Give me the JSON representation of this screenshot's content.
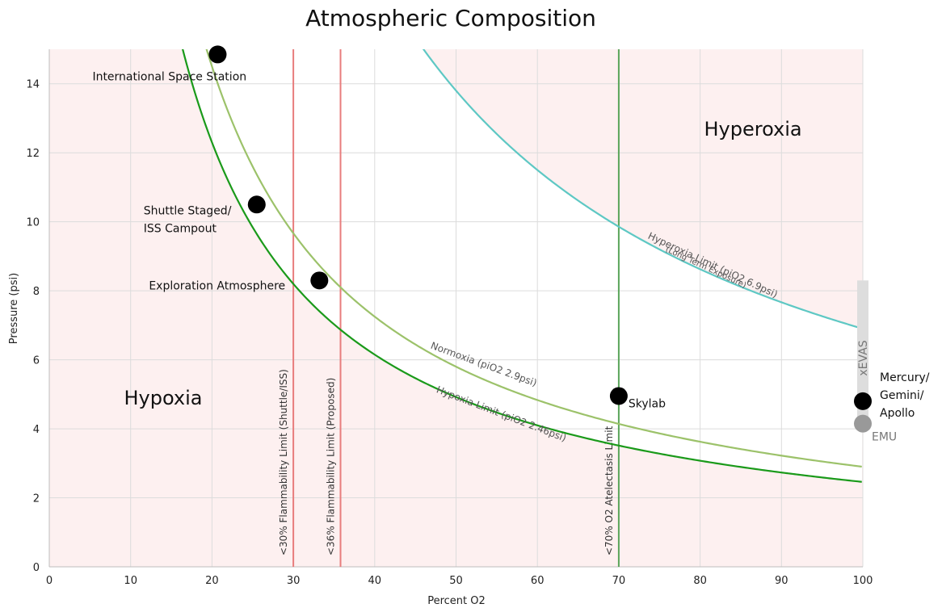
{
  "chart_data": {
    "type": "scatter",
    "title": "Atmospheric Composition",
    "xlabel": "Percent O2",
    "ylabel": "Pressure (psi)",
    "xlim": [
      0,
      100
    ],
    "ylim": [
      0,
      15
    ],
    "x_ticks": [
      0,
      10,
      20,
      30,
      40,
      50,
      60,
      70,
      80,
      90,
      100
    ],
    "y_ticks": [
      0,
      2,
      4,
      6,
      8,
      10,
      12,
      14
    ],
    "grid": true,
    "zones": [
      {
        "label": "Hypoxia",
        "x": 14,
        "y": 4.7
      },
      {
        "label": "Hyperoxia",
        "x": 86.5,
        "y": 12.5
      }
    ],
    "curves": [
      {
        "label": "Hypoxia Limit (piO2 2.46psi)",
        "sublabel": "",
        "pio2": 2.46,
        "color": "#1a9a1a"
      },
      {
        "label": "Normoxia (piO2 2.9psi)",
        "sublabel": "",
        "pio2": 2.9,
        "color": "#9cc26a"
      },
      {
        "label": "Hyperoxia Limit (piO2 6.9psi)",
        "sublabel": "(Long Term Exposure)",
        "pio2": 6.9,
        "color": "#5ec8c4"
      }
    ],
    "vertical_lines": [
      {
        "x": 30,
        "label": "<30% Flammability Limit (Shuttle/ISS)",
        "color": "#e87d7d"
      },
      {
        "x": 35.8,
        "label": "<36% Flammability Limit (Proposed)",
        "color": "#e87d7d"
      },
      {
        "x": 70,
        "label": "<70% O2 Atelectasis Limit",
        "color": "#5aa55a"
      }
    ],
    "points": [
      {
        "label": "International Space Station",
        "x": 20.7,
        "y": 14.85,
        "color": "#000000"
      },
      {
        "label": "Shuttle Staged/",
        "label2": "ISS Campout",
        "x": 25.5,
        "y": 10.5,
        "color": "#000000"
      },
      {
        "label": "Exploration Atmosphere",
        "x": 33.2,
        "y": 8.3,
        "color": "#000000"
      },
      {
        "label": "Skylab",
        "x": 70,
        "y": 4.95,
        "color": "#000000"
      },
      {
        "label": "Mercury/",
        "label2": "Gemini/",
        "label3": "Apollo",
        "x": 100,
        "y": 4.8,
        "color": "#000000"
      },
      {
        "label": "EMU",
        "x": 100,
        "y": 4.15,
        "color": "#999999"
      }
    ],
    "xevas_bar": {
      "label": "xEVAS",
      "x": 100,
      "y_from": 4.2,
      "y_to": 8.3,
      "color": "#dddddd"
    },
    "colors": {
      "danger_zone": "#fdf0f0",
      "safe_zone": "#ffffff"
    }
  }
}
